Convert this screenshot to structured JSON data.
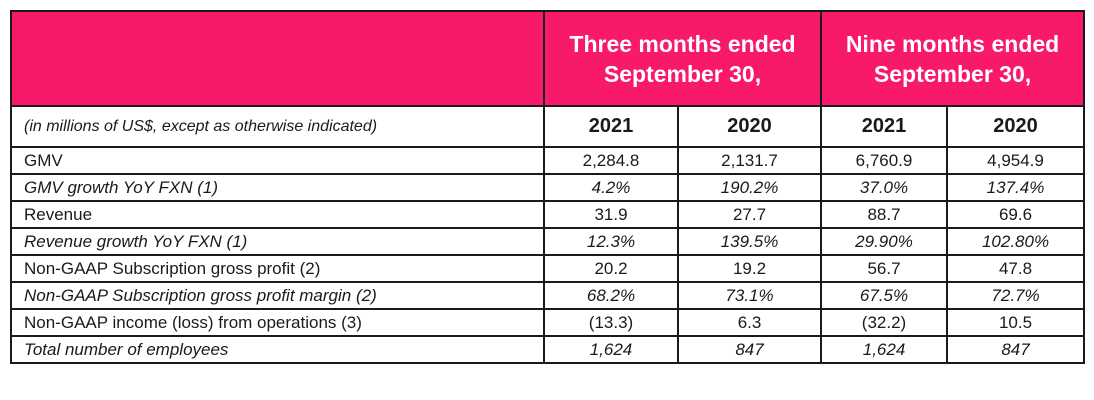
{
  "header": {
    "three_months_line1": "Three months ended",
    "three_months_line2": "September 30,",
    "nine_months_line1": "Nine months ended",
    "nine_months_line2": "September 30,"
  },
  "subheader": {
    "note": "(in millions of US$, except as otherwise indicated)",
    "years": [
      "2021",
      "2020",
      "2021",
      "2020"
    ]
  },
  "rows": [
    {
      "label": "GMV",
      "values": [
        "2,284.8",
        "2,131.7",
        "6,760.9",
        "4,954.9"
      ]
    },
    {
      "label": "GMV growth YoY FXN (1)",
      "values": [
        "4.2%",
        "190.2%",
        "37.0%",
        "137.4%"
      ]
    },
    {
      "label": "Revenue",
      "values": [
        "31.9",
        "27.7",
        "88.7",
        "69.6"
      ]
    },
    {
      "label": "Revenue growth YoY FXN (1)",
      "values": [
        "12.3%",
        "139.5%",
        "29.90%",
        "102.80%"
      ]
    },
    {
      "label": "Non-GAAP Subscription gross profit (2)",
      "values": [
        "20.2",
        "19.2",
        "56.7",
        "47.8"
      ]
    },
    {
      "label": "Non-GAAP Subscription gross profit margin (2)",
      "values": [
        "68.2%",
        "73.1%",
        "67.5%",
        "72.7%"
      ]
    },
    {
      "label": "Non-GAAP income (loss) from operations (3)",
      "values": [
        "(13.3)",
        "6.3",
        "(32.2)",
        "10.5"
      ]
    },
    {
      "label": "Total number of employees",
      "values": [
        "1,624",
        "847",
        "1,624",
        "847"
      ]
    }
  ],
  "colors": {
    "header_bg": "#f9196a",
    "header_text": "#ffffff",
    "border": "#1a1a1a"
  }
}
